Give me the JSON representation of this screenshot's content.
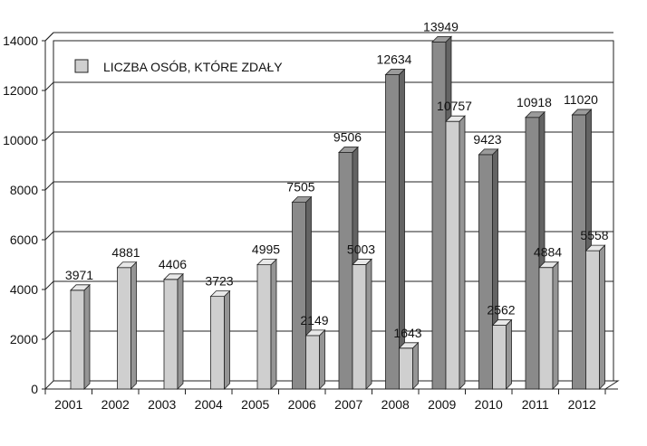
{
  "chart_data": {
    "type": "bar",
    "title": "",
    "xlabel": "",
    "ylabel": "",
    "ylim": [
      0,
      14000
    ],
    "yticks": [
      0,
      2000,
      4000,
      6000,
      8000,
      10000,
      12000,
      14000
    ],
    "grid": true,
    "legend_position": "top-left",
    "categories": [
      "2001",
      "2002",
      "2003",
      "2004",
      "2005",
      "2006",
      "2007",
      "2008",
      "2009",
      "2010",
      "2011",
      "2012"
    ],
    "series": [
      {
        "name": "",
        "color": "#8a8a8a",
        "values": [
          null,
          null,
          null,
          null,
          null,
          7505,
          9506,
          12634,
          13949,
          9423,
          10918,
          11020
        ]
      },
      {
        "name": "LICZBA OSÓB, KTÓRE ZDAŁY",
        "color": "#cfcfcf",
        "values": [
          3971,
          4881,
          4406,
          3723,
          4995,
          2149,
          5003,
          1643,
          10757,
          2562,
          4884,
          5558
        ]
      }
    ]
  }
}
